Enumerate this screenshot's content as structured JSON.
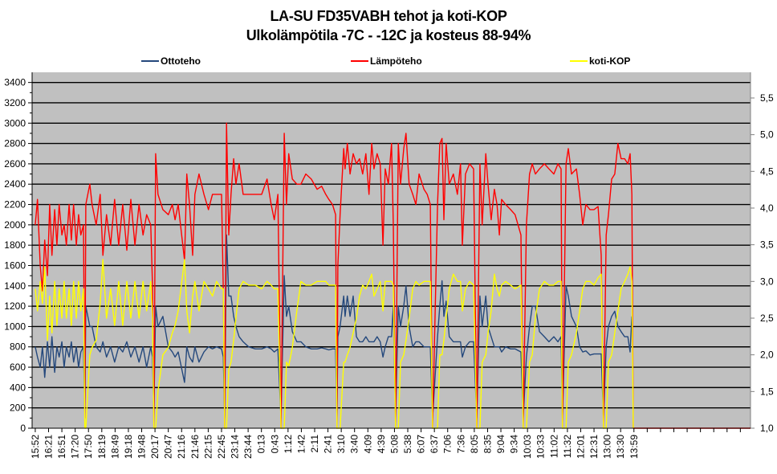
{
  "chart_data": {
    "type": "line",
    "title": "LA-SU FD35VABH tehot ja koti-KOP",
    "subtitle": "Ulkolämpötila  -7C - -12C ja kosteus 88-94%",
    "legend_position": "top",
    "grid": true,
    "x_unit": "minutes since 15:52",
    "xlim": [
      -7,
      1586
    ],
    "x_tick_labels": [
      "15:52",
      "16:21",
      "16:51",
      "17:20",
      "17:50",
      "18:19",
      "18:49",
      "19:18",
      "19:48",
      "20:17",
      "20:47",
      "21:16",
      "21:46",
      "22:15",
      "22:45",
      "23:14",
      "23:44",
      "0:13",
      "0:43",
      "1:12",
      "1:42",
      "2:11",
      "2:41",
      "3:10",
      "3:40",
      "4:09",
      "4:39",
      "5:08",
      "5:38",
      "6:07",
      "6:37",
      "7:06",
      "7:36",
      "8:05",
      "8:35",
      "9:04",
      "9:34",
      "10:03",
      "10:33",
      "11:02",
      "11:32",
      "12:01",
      "12:31",
      "13:00",
      "13:30",
      "13:59"
    ],
    "x_tick_step_minutes": 29.5,
    "y_left": {
      "min": 0,
      "max": 3500,
      "ticks": [
        "0",
        "200",
        "400",
        "600",
        "800",
        "1000",
        "1200",
        "1400",
        "1600",
        "1800",
        "2000",
        "2200",
        "2400",
        "2600",
        "2800",
        "3000",
        "3200",
        "3400"
      ],
      "step": 200
    },
    "y_right": {
      "min": 1.0,
      "max": 5.85,
      "ticks": [
        "1,0",
        "1,5",
        "2,0",
        "2,5",
        "3,0",
        "3,5",
        "4,0",
        "4,5",
        "5,0",
        "5,5"
      ],
      "step": 0.5
    },
    "series": [
      {
        "name": "Ottoteho",
        "axis": "left",
        "color": "#24487c",
        "column": 1
      },
      {
        "name": "Lämpöteho",
        "axis": "left",
        "color": "#ff0000",
        "column": 2
      },
      {
        "name": "koti-KOP",
        "axis": "right",
        "color": "#ffff00",
        "column": 3
      }
    ],
    "columns": [
      "t_min",
      "Ottoteho",
      "Lämpöteho",
      "koti-KOP"
    ],
    "points": [
      [
        0,
        800,
        2000,
        2.9
      ],
      [
        5,
        700,
        2250,
        2.6
      ],
      [
        11,
        600,
        1600,
        3.0
      ],
      [
        16,
        800,
        1350,
        2.7
      ],
      [
        21,
        500,
        1850,
        3.2
      ],
      [
        27,
        850,
        1500,
        2.2
      ],
      [
        32,
        600,
        2200,
        2.8
      ],
      [
        37,
        900,
        1700,
        2.3
      ],
      [
        43,
        550,
        2150,
        3.0
      ],
      [
        48,
        800,
        1800,
        2.4
      ],
      [
        53,
        700,
        2200,
        2.9
      ],
      [
        59,
        850,
        1900,
        2.5
      ],
      [
        64,
        600,
        2000,
        3.0
      ],
      [
        69,
        800,
        1800,
        2.5
      ],
      [
        75,
        700,
        2200,
        2.9
      ],
      [
        80,
        850,
        1850,
        2.4
      ],
      [
        85,
        650,
        2200,
        3.0
      ],
      [
        91,
        800,
        1800,
        2.5
      ],
      [
        96,
        600,
        2100,
        3.0
      ],
      [
        101,
        750,
        1900,
        2.6
      ],
      [
        107,
        800,
        2000,
        2.9
      ],
      [
        110,
        150,
        100,
        1.0
      ],
      [
        112,
        1200,
        2200,
        1.0
      ],
      [
        121,
        1000,
        2400,
        2.0
      ],
      [
        126,
        1000,
        2200,
        2.1
      ],
      [
        135,
        800,
        2000,
        2.2
      ],
      [
        144,
        750,
        2300,
        2.7
      ],
      [
        150,
        850,
        1700,
        3.3
      ],
      [
        158,
        700,
        2100,
        2.5
      ],
      [
        167,
        800,
        1800,
        2.9
      ],
      [
        176,
        650,
        2250,
        2.4
      ],
      [
        185,
        800,
        1800,
        3.0
      ],
      [
        194,
        750,
        2200,
        2.4
      ],
      [
        203,
        850,
        1750,
        3.0
      ],
      [
        212,
        700,
        2250,
        2.5
      ],
      [
        221,
        800,
        1800,
        3.0
      ],
      [
        230,
        650,
        2200,
        2.5
      ],
      [
        239,
        800,
        1900,
        3.0
      ],
      [
        247,
        600,
        2100,
        2.6
      ],
      [
        256,
        800,
        2000,
        3.0
      ],
      [
        260,
        700,
        1400,
        2.5
      ],
      [
        263,
        150,
        0,
        1.0
      ],
      [
        267,
        1200,
        2700,
        1.0
      ],
      [
        272,
        1000,
        2300,
        1.5
      ],
      [
        283,
        1100,
        2150,
        2.0
      ],
      [
        295,
        800,
        2100,
        2.1
      ],
      [
        304,
        750,
        2200,
        2.3
      ],
      [
        310,
        700,
        2050,
        2.4
      ],
      [
        317,
        750,
        2200,
        2.6
      ],
      [
        331,
        450,
        1650,
        3.3
      ],
      [
        336,
        800,
        2500,
        2.6
      ],
      [
        342,
        700,
        2200,
        2.3
      ],
      [
        349,
        650,
        1700,
        2.8
      ],
      [
        354,
        800,
        2300,
        3.0
      ],
      [
        363,
        650,
        2500,
        2.6
      ],
      [
        374,
        750,
        2300,
        3.0
      ],
      [
        384,
        800,
        2150,
        2.9
      ],
      [
        393,
        780,
        2300,
        2.8
      ],
      [
        402,
        800,
        2300,
        3.0
      ],
      [
        413,
        780,
        2300,
        2.9
      ],
      [
        417,
        700,
        1350,
        2.9
      ],
      [
        420,
        100,
        0,
        1.0
      ],
      [
        424,
        1900,
        3000,
        1.0
      ],
      [
        429,
        1300,
        1900,
        1.8
      ],
      [
        434,
        1300,
        2300,
        1.9
      ],
      [
        440,
        1100,
        2650,
        2.2
      ],
      [
        445,
        1000,
        2400,
        2.5
      ],
      [
        452,
        900,
        2600,
        2.9
      ],
      [
        461,
        850,
        2300,
        3.0
      ],
      [
        473,
        800,
        2300,
        2.95
      ],
      [
        488,
        780,
        2300,
        2.95
      ],
      [
        502,
        780,
        2300,
        2.9
      ],
      [
        514,
        800,
        2450,
        3.0
      ],
      [
        523,
        780,
        2200,
        2.95
      ],
      [
        530,
        750,
        2050,
        2.9
      ],
      [
        538,
        780,
        2300,
        2.9
      ],
      [
        545,
        100,
        0,
        1.0
      ],
      [
        552,
        1500,
        2900,
        1.0
      ],
      [
        557,
        1100,
        2200,
        1.9
      ],
      [
        562,
        1200,
        2700,
        1.85
      ],
      [
        570,
        950,
        2450,
        2.1
      ],
      [
        580,
        850,
        2400,
        2.6
      ],
      [
        589,
        850,
        2400,
        3.0
      ],
      [
        600,
        800,
        2500,
        2.95
      ],
      [
        612,
        780,
        2450,
        2.95
      ],
      [
        625,
        780,
        2350,
        3.0
      ],
      [
        635,
        790,
        2380,
        3.0
      ],
      [
        644,
        780,
        2300,
        3.0
      ],
      [
        651,
        770,
        2250,
        2.95
      ],
      [
        659,
        780,
        2200,
        2.95
      ],
      [
        666,
        780,
        2100,
        2.95
      ],
      [
        669,
        100,
        0,
        1.0
      ],
      [
        671,
        900,
        1600,
        1.0
      ],
      [
        676,
        1000,
        2100,
        1.0
      ],
      [
        684,
        1300,
        2750,
        1.9
      ],
      [
        687,
        1100,
        2550,
        1.9
      ],
      [
        692,
        1300,
        2800,
        2.0
      ],
      [
        698,
        1100,
        2500,
        2.1
      ],
      [
        705,
        1300,
        2700,
        2.3
      ],
      [
        712,
        900,
        2600,
        2.5
      ],
      [
        719,
        850,
        2650,
        2.8
      ],
      [
        726,
        850,
        2500,
        2.95
      ],
      [
        733,
        900,
        2700,
        2.9
      ],
      [
        740,
        850,
        2300,
        3.0
      ],
      [
        746,
        850,
        2800,
        3.1
      ],
      [
        751,
        850,
        2550,
        2.8
      ],
      [
        758,
        900,
        2700,
        2.9
      ],
      [
        765,
        850,
        2600,
        3.0
      ],
      [
        771,
        700,
        1800,
        2.6
      ],
      [
        776,
        800,
        2550,
        3.0
      ],
      [
        783,
        900,
        2400,
        3.0
      ],
      [
        790,
        900,
        2800,
        3.0
      ],
      [
        794,
        1200,
        2000,
        2.95
      ],
      [
        799,
        100,
        0,
        1.0
      ],
      [
        805,
        1200,
        2800,
        1.0
      ],
      [
        810,
        1000,
        2400,
        1.9
      ],
      [
        817,
        1200,
        2750,
        2.0
      ],
      [
        822,
        1400,
        2900,
        2.2
      ],
      [
        829,
        1000,
        2400,
        2.5
      ],
      [
        837,
        800,
        2300,
        2.9
      ],
      [
        844,
        850,
        2200,
        3.0
      ],
      [
        851,
        850,
        2500,
        2.95
      ],
      [
        862,
        800,
        2350,
        3.0
      ],
      [
        869,
        800,
        2300,
        3.0
      ],
      [
        876,
        800,
        2200,
        3.0
      ],
      [
        881,
        100,
        0,
        1.0
      ],
      [
        892,
        900,
        2200,
        1.0
      ],
      [
        897,
        1200,
        2800,
        2.0
      ],
      [
        902,
        1450,
        2850,
        2.0
      ],
      [
        906,
        1100,
        2050,
        2.2
      ],
      [
        911,
        1250,
        2800,
        2.5
      ],
      [
        918,
        900,
        2400,
        2.9
      ],
      [
        927,
        850,
        2500,
        3.1
      ],
      [
        936,
        850,
        2300,
        3.0
      ],
      [
        943,
        850,
        2600,
        3.0
      ],
      [
        947,
        700,
        1800,
        2.6
      ],
      [
        954,
        800,
        2500,
        2.9
      ],
      [
        963,
        850,
        2600,
        3.0
      ],
      [
        972,
        850,
        2550,
        2.95
      ],
      [
        979,
        100,
        0,
        1.0
      ],
      [
        986,
        1300,
        2600,
        1.0
      ],
      [
        991,
        1000,
        2000,
        1.9
      ],
      [
        999,
        1300,
        2700,
        2.0
      ],
      [
        1004,
        1000,
        2400,
        2.3
      ],
      [
        1011,
        900,
        2050,
        2.6
      ],
      [
        1018,
        800,
        2350,
        3.1
      ],
      [
        1024,
        800,
        2200,
        2.9
      ],
      [
        1029,
        800,
        1900,
        2.8
      ],
      [
        1034,
        750,
        2250,
        2.95
      ],
      [
        1043,
        800,
        2200,
        3.0
      ],
      [
        1054,
        780,
        2150,
        2.95
      ],
      [
        1064,
        780,
        2100,
        2.9
      ],
      [
        1077,
        750,
        1900,
        2.95
      ],
      [
        1082,
        100,
        0,
        1.0
      ],
      [
        1089,
        700,
        2000,
        1.0
      ],
      [
        1096,
        1000,
        2500,
        1.9
      ],
      [
        1102,
        1200,
        2600,
        2.0
      ],
      [
        1109,
        1200,
        2500,
        2.5
      ],
      [
        1118,
        950,
        2550,
        2.9
      ],
      [
        1129,
        900,
        2600,
        3.0
      ],
      [
        1139,
        850,
        2550,
        2.95
      ],
      [
        1150,
        900,
        2500,
        2.95
      ],
      [
        1159,
        850,
        2600,
        3.0
      ],
      [
        1166,
        900,
        2550,
        3.0
      ],
      [
        1169,
        100,
        0,
        1.0
      ],
      [
        1177,
        1400,
        2600,
        1.0
      ],
      [
        1182,
        1300,
        2750,
        1.9
      ],
      [
        1189,
        1100,
        2500,
        2.0
      ],
      [
        1200,
        1000,
        2550,
        2.3
      ],
      [
        1207,
        800,
        2300,
        2.6
      ],
      [
        1214,
        750,
        2000,
        2.9
      ],
      [
        1221,
        760,
        2200,
        3.0
      ],
      [
        1230,
        720,
        2150,
        3.0
      ],
      [
        1239,
        730,
        2150,
        2.95
      ],
      [
        1248,
        730,
        2180,
        3.05
      ],
      [
        1255,
        730,
        1700,
        3.1
      ],
      [
        1260,
        100,
        0,
        1.0
      ],
      [
        1266,
        800,
        1900,
        1.0
      ],
      [
        1271,
        1000,
        2100,
        1.9
      ],
      [
        1278,
        1100,
        2450,
        2.0
      ],
      [
        1285,
        1150,
        2500,
        2.3
      ],
      [
        1292,
        1000,
        2800,
        2.6
      ],
      [
        1299,
        950,
        2650,
        2.9
      ],
      [
        1307,
        900,
        2650,
        3.0
      ],
      [
        1314,
        900,
        2600,
        3.1
      ],
      [
        1319,
        750,
        2700,
        3.2
      ],
      [
        1323,
        1100,
        2300,
        3.0
      ],
      [
        1326,
        null,
        0,
        1.0
      ],
      [
        1586,
        null,
        0,
        null
      ]
    ]
  }
}
